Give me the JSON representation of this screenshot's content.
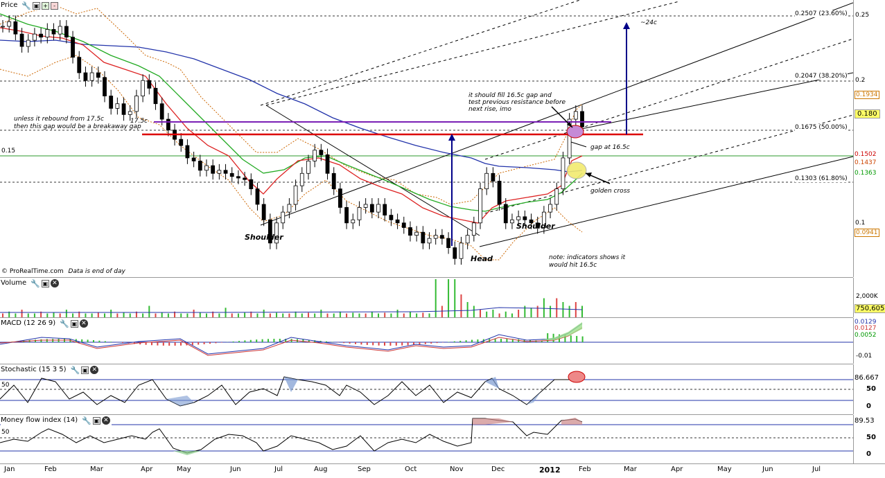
{
  "panels": {
    "price": {
      "title": "Price",
      "copyright": "© ProRealTime.com",
      "data_note": "Data is end of day"
    },
    "volume": {
      "title": "Volume"
    },
    "macd": {
      "title": "MACD (12 26 9)"
    },
    "stochastic": {
      "title": "Stochastic (15 3 5)"
    },
    "mfi": {
      "title": "Money flow index (14)"
    }
  },
  "price_axis": {
    "ticks": [
      "0.25",
      "0.2",
      "0.1"
    ],
    "tag_values": [
      {
        "text": "0.1934",
        "color": "#cc7700"
      },
      {
        "text": "0.180",
        "color": "#000000",
        "bg": "#ffff66"
      },
      {
        "text": "0.1502",
        "color": "#cc0000"
      },
      {
        "text": "0.1437",
        "color": "#cc4400"
      },
      {
        "text": "0.1363",
        "color": "#009900"
      },
      {
        "text": "0.0941",
        "color": "#cc7700"
      }
    ],
    "left_label": "0.15"
  },
  "fib_labels": [
    "0.2507 (23.60%)",
    "0.2047 (38.20%)",
    "0.1675 (50.00%)",
    "0.1303 (61.80%)"
  ],
  "annotations": {
    "breakaway_1": "unless it rebound from 17.5c",
    "breakaway_2": "then this gap would be a breakaway gap",
    "level_175": "17.5c",
    "fill_1": "it should fill 16.5c gap and",
    "fill_2": "test previous resistance before",
    "fill_3": "next rise, imo",
    "target": "~24c",
    "gap": "gap at 16.5c",
    "golden": "golden cross",
    "shoulder_left": "Shoulder",
    "shoulder_right": "Shoulder",
    "head": "Head",
    "note_1": "note: indicators shows it",
    "note_2": "would hit 16.5c"
  },
  "volume_axis": {
    "tick": "2,000K",
    "current": "750,605"
  },
  "macd_axis": {
    "v1": "0.0129",
    "v2": "0.0127",
    "v3": "0.0052",
    "tick": "-0.01"
  },
  "stoch_axis": {
    "current": "86.667",
    "mid": "50",
    "zero": "0",
    "left": "50"
  },
  "mfi_axis": {
    "current": "89.53",
    "mid": "50",
    "zero": "0",
    "left": "50"
  },
  "x_axis": {
    "months": [
      "Jan",
      "Feb",
      "Mar",
      "Apr",
      "May",
      "Jun",
      "Jul",
      "Aug",
      "Sep",
      "Oct",
      "Nov",
      "Dec",
      "2012",
      "Feb",
      "Mar",
      "Apr",
      "May",
      "Jun",
      "Jul"
    ]
  },
  "colors": {
    "ma_red": "#dd2222",
    "ma_green": "#22aa22",
    "ma_blue": "#2233aa",
    "boll": "#cc6600",
    "support": "#7a1fb5",
    "gap_line": "#dd0000",
    "arrow": "#000088"
  },
  "chart_data": {
    "type": "line",
    "title": "Price",
    "ylim": [
      0.083,
      0.262
    ],
    "fib_levels": [
      0.2507,
      0.2047,
      0.1675,
      0.1303
    ],
    "support_levels": [
      0.175,
      0.165,
      0.15
    ],
    "last": {
      "close": 0.18,
      "high": 0.1934,
      "bb_low": 0.0941,
      "ma_red": 0.1502,
      "ma_orange": 0.1437,
      "ma_green": 0.1363
    },
    "close_series": [
      0.245,
      0.248,
      0.24,
      0.232,
      0.236,
      0.24,
      0.238,
      0.243,
      0.24,
      0.245,
      0.238,
      0.225,
      0.215,
      0.21,
      0.215,
      0.212,
      0.2,
      0.192,
      0.195,
      0.188,
      0.19,
      0.2,
      0.21,
      0.205,
      0.195,
      0.185,
      0.178,
      0.172,
      0.168,
      0.16,
      0.158,
      0.152,
      0.155,
      0.15,
      0.152,
      0.15,
      0.148,
      0.147,
      0.146,
      0.14,
      0.13,
      0.12,
      0.105,
      0.118,
      0.125,
      0.13,
      0.142,
      0.15,
      0.158,
      0.165,
      0.162,
      0.15,
      0.14,
      0.128,
      0.118,
      0.12,
      0.128,
      0.13,
      0.125,
      0.13,
      0.123,
      0.12,
      0.118,
      0.115,
      0.11,
      0.112,
      0.105,
      0.108,
      0.11,
      0.108,
      0.102,
      0.095,
      0.105,
      0.11,
      0.118,
      0.14,
      0.15,
      0.145,
      0.13,
      0.118,
      0.12,
      0.122,
      0.12,
      0.118,
      0.115,
      0.125,
      0.13,
      0.14,
      0.16,
      0.185,
      0.19,
      0.18
    ],
    "volume_series": [
      0.1,
      0.15,
      0.1,
      0.2,
      0.1,
      0.1,
      0.15,
      0.1,
      0.12,
      0.1,
      0.2,
      0.1,
      0.15,
      0.1,
      0.1,
      0.12,
      0.1,
      0.2,
      0.1,
      0.12,
      0.1,
      0.15,
      0.1,
      0.3,
      0.1,
      0.12,
      0.1,
      0.15,
      0.1,
      0.1,
      0.2,
      0.12,
      0.1,
      0.15,
      0.1,
      0.25,
      0.1,
      0.1,
      0.12,
      0.15,
      0.1,
      0.2,
      0.1,
      0.12,
      0.1,
      0.1,
      0.15,
      0.1,
      0.12,
      0.1,
      0.2,
      0.1,
      0.1,
      0.15,
      0.1,
      0.12,
      0.1,
      0.1,
      0.15,
      0.1,
      0.12,
      0.1,
      0.2,
      0.1,
      0.15,
      0.1,
      0.12,
      0.1,
      1.0,
      0.3,
      1.0,
      1.0,
      0.6,
      0.4,
      0.3,
      0.2,
      0.15,
      0.2,
      0.1,
      0.15,
      0.1,
      0.2,
      0.3,
      0.25,
      0.3,
      0.5,
      0.3,
      0.5,
      0.4,
      0.3,
      0.4,
      0.3
    ],
    "months": [
      "Jan",
      "Feb",
      "Mar",
      "Apr",
      "May",
      "Jun",
      "Jul",
      "Aug",
      "Sep",
      "Oct",
      "Nov",
      "Dec",
      "2012",
      "Feb",
      "Mar",
      "Apr",
      "May",
      "Jun",
      "Jul"
    ]
  }
}
